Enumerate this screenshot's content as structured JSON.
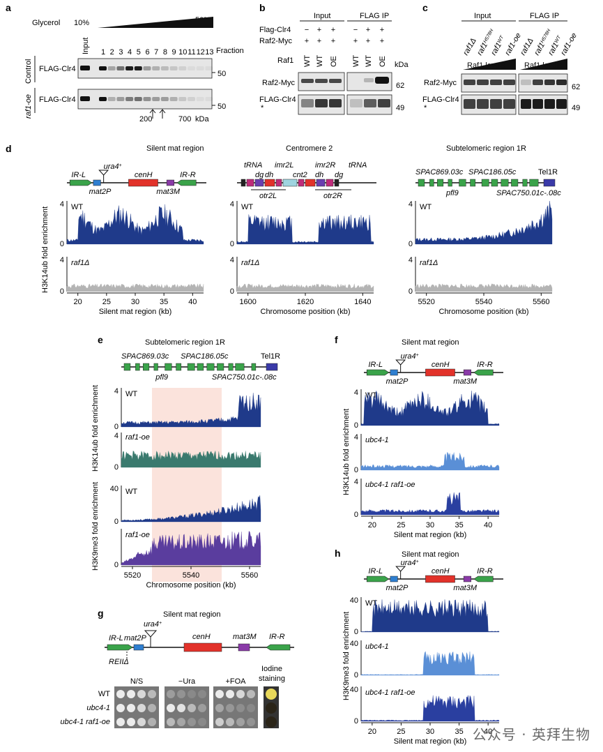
{
  "panels": {
    "a": {
      "letter": "a",
      "glycerol_label": "Glycerol",
      "glycerol_low": "10%",
      "glycerol_high": "50%",
      "input_label": "Input",
      "fractions": [
        "1",
        "2",
        "3",
        "4",
        "5",
        "6",
        "7",
        "8",
        "9",
        "10",
        "11",
        "12",
        "13"
      ],
      "fraction_label": "Fraction",
      "rows": [
        {
          "group": "Control",
          "protein": "FLAG-Clr4",
          "kda": "50"
        },
        {
          "group": "raf1-oe",
          "protein": "FLAG-Clr4",
          "kda": "50"
        }
      ],
      "markers": [
        "200",
        "700"
      ],
      "marker_unit": "kDa"
    },
    "b": {
      "letter": "b",
      "headers": [
        "Input",
        "FLAG IP"
      ],
      "row_labels": [
        "Flag-Clr4",
        "Raf2-Myc",
        "Raf1"
      ],
      "signs_row1": [
        "−",
        "+",
        "+",
        "−",
        "+",
        "+"
      ],
      "signs_row2": [
        "+",
        "+",
        "+",
        "+",
        "+",
        "+"
      ],
      "raf1": [
        "WT",
        "WT",
        "OE",
        "WT",
        "WT",
        "OE"
      ],
      "kda_label": "kDa",
      "blots": [
        {
          "protein": "Raf2-Myc",
          "kda": "62"
        },
        {
          "protein": "FLAG-Clr4",
          "kda": "49"
        }
      ],
      "asterisk": "*"
    },
    "c": {
      "letter": "c",
      "headers": [
        "Input",
        "FLAG IP"
      ],
      "lanes": [
        "raf1Δ",
        "raf1",
        "raf1",
        "raf1-oe"
      ],
      "lane_superscripts": [
        "",
        "H578H",
        "WT",
        ""
      ],
      "levels_label": "Raf1 levels",
      "blots": [
        {
          "protein": "Raf2-Myc",
          "kda": "62"
        },
        {
          "protein": "FLAG-Clr4",
          "kda": "49"
        }
      ],
      "asterisk": "*"
    },
    "d": {
      "letter": "d",
      "ylabel": "H3K14ub fold enrichment",
      "subpanels": [
        {
          "title": "Silent mat region",
          "xlabel": "Silent mat region (kb)",
          "xticks": [
            "20",
            "25",
            "30",
            "35",
            "40"
          ],
          "ymax": "4",
          "ymin": "0",
          "genes": [
            "IR-L",
            "ura4+",
            "mat2P",
            "cenH",
            "mat3M",
            "IR-R"
          ]
        },
        {
          "title": "Centromere 2",
          "xlabel": "Chromosome position (kb)",
          "xticks": [
            "1600",
            "1620",
            "1640"
          ],
          "ymax": "4",
          "ymin": "0",
          "genes": [
            "tRNA",
            "dg",
            "dh",
            "imr2L",
            "cnt2",
            "imr2R",
            "dh",
            "dg",
            "tRNA",
            "otr2L",
            "otr2R"
          ]
        },
        {
          "title": "Subtelomeric region 1R",
          "xlabel": "Chromosome position (kb)",
          "xticks": [
            "5520",
            "5540",
            "5560"
          ],
          "ymax": "4",
          "ymin": "0",
          "genes": [
            "SPAC869.03c",
            "SPAC186.05c",
            "Tel1R",
            "pfl9",
            "SPAC750.01c-.08c"
          ]
        }
      ],
      "tracks": [
        "WT",
        "raf1Δ"
      ]
    },
    "e": {
      "letter": "e",
      "title": "Subtelomeric region 1R",
      "genes": [
        "SPAC869.03c",
        "SPAC186.05c",
        "Tel1R",
        "pfl9",
        "SPAC750.01c-.08c"
      ],
      "ylabel_top": "H3K14ub fold enrichment",
      "ylabel_bottom": "H3K9me3 fold enrichment",
      "tracks": [
        "WT",
        "raf1-oe",
        "WT",
        "raf1-oe"
      ],
      "ymax_top": "4",
      "ymax_bottom": "40",
      "ymin": "0",
      "xticks": [
        "5520",
        "5540",
        "5560"
      ],
      "xlabel": "Chromosome position (kb)"
    },
    "f": {
      "letter": "f",
      "title": "Silent mat region",
      "genes": [
        "IR-L",
        "ura4+",
        "mat2P",
        "cenH",
        "mat3M",
        "IR-R"
      ],
      "ylabel": "H3K14ub fold enrichment",
      "tracks": [
        "WT",
        "ubc4-1",
        "ubc4-1 raf1-oe"
      ],
      "ymax": "4",
      "ymin": "0",
      "xticks": [
        "20",
        "25",
        "30",
        "35",
        "40"
      ],
      "xlabel": "Silent mat region (kb)"
    },
    "g": {
      "letter": "g",
      "title": "Silent mat region",
      "genes": [
        "IR-L",
        "mat2P",
        "ura4+",
        "cenH",
        "mat3M",
        "IR-R",
        "REIIΔ"
      ],
      "columns": [
        "N/S",
        "−Ura",
        "+FOA",
        "Iodine staining"
      ],
      "strains": [
        "WT",
        "ubc4-1",
        "ubc4-1 raf1-oe"
      ]
    },
    "h": {
      "letter": "h",
      "title": "Silent mat region",
      "genes": [
        "IR-L",
        "ura4+",
        "mat2P",
        "cenH",
        "mat3M",
        "IR-R"
      ],
      "ylabel": "H3K9me3 fold enrichment",
      "tracks": [
        "WT",
        "ubc4-1",
        "ubc4-1 raf1-oe"
      ],
      "ymax": "40",
      "ymin": "0",
      "xticks": [
        "20",
        "25",
        "30",
        "35",
        "40"
      ],
      "xlabel": "Silent mat region (kb)"
    }
  },
  "watermark": "公众号 · 英拜生物",
  "colors": {
    "wt": "#1f3a8a",
    "raf1_delta": "#b4b4b4",
    "raf1_oe_ub": "#3a7a6e",
    "raf1_oe_me": "#5a3d9e",
    "ubc4": "#5a8fd6",
    "ubc4_oe": "#2a3fa0",
    "highlight": "#fbe3dc",
    "gene_green": "#3aa34a",
    "gene_red": "#e2322a",
    "gene_blue": "#2f7fd0",
    "gene_purple": "#8a3aa8",
    "tel": "#3a3aa8"
  }
}
